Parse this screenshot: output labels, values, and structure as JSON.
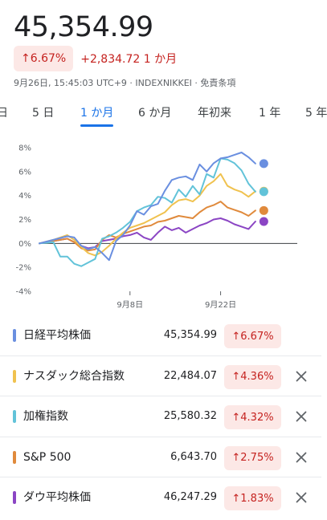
{
  "header": {
    "price": "45,354.99",
    "change_pct": "↑6.67%",
    "change_abs": "+2,834.72 1 か月",
    "meta": "9月26日, 15:45:03 UTC+9 · INDEXNIKKEI · 免責条項"
  },
  "tabs": [
    {
      "label": "日",
      "active": false
    },
    {
      "label": "5 日",
      "active": false
    },
    {
      "label": "1 か月",
      "active": true
    },
    {
      "label": "6 か月",
      "active": false
    },
    {
      "label": "年初来",
      "active": false
    },
    {
      "label": "1 年",
      "active": false
    },
    {
      "label": "5 年",
      "active": false
    }
  ],
  "chart_data": {
    "type": "line",
    "y_tick_labels": [
      "8%",
      "6%",
      "4%",
      "2%",
      "0%",
      "-2%",
      "-4%"
    ],
    "ylim": [
      -4,
      8
    ],
    "x_ticks": [
      {
        "x": 9,
        "label": "9月8日"
      },
      {
        "x": 22,
        "label": "9月22日"
      }
    ],
    "xlim": [
      -4,
      33
    ],
    "series": [
      {
        "name": "日経平均株価",
        "color": "#6a8fe0",
        "points": [
          [
            -4,
            0
          ],
          [
            -2,
            0.3
          ],
          [
            0,
            0.6
          ],
          [
            1,
            0.5
          ],
          [
            2,
            -0.2
          ],
          [
            3,
            -0.5
          ],
          [
            4,
            -0.3
          ],
          [
            5,
            -0.8
          ],
          [
            6,
            -1.4
          ],
          [
            7,
            0.2
          ],
          [
            8,
            0.7
          ],
          [
            9,
            1.5
          ],
          [
            10,
            2.7
          ],
          [
            11,
            2.4
          ],
          [
            12,
            3.1
          ],
          [
            13,
            3.3
          ],
          [
            14,
            4.4
          ],
          [
            15,
            5.3
          ],
          [
            16,
            5.5
          ],
          [
            17,
            5.6
          ],
          [
            18,
            5.3
          ],
          [
            19,
            6.6
          ],
          [
            20,
            6.0
          ],
          [
            21,
            6.7
          ],
          [
            22,
            7.1
          ],
          [
            23,
            7.2
          ],
          [
            24,
            7.4
          ],
          [
            25,
            7.6
          ],
          [
            26,
            7.2
          ],
          [
            27,
            6.67
          ]
        ]
      },
      {
        "name": "ナスダック総合指数",
        "color": "#f0c24f",
        "points": [
          [
            -4,
            0
          ],
          [
            -2,
            0.3
          ],
          [
            0,
            0.7
          ],
          [
            1,
            0.3
          ],
          [
            2,
            -0.3
          ],
          [
            3,
            -0.8
          ],
          [
            4,
            -1.0
          ],
          [
            5,
            -0.7
          ],
          [
            6,
            -0.2
          ],
          [
            7,
            0.4
          ],
          [
            8,
            0.9
          ],
          [
            9,
            1.3
          ],
          [
            10,
            1.5
          ],
          [
            11,
            1.7
          ],
          [
            12,
            2.0
          ],
          [
            13,
            2.3
          ],
          [
            14,
            2.6
          ],
          [
            15,
            3.2
          ],
          [
            16,
            3.6
          ],
          [
            17,
            3.7
          ],
          [
            18,
            3.5
          ],
          [
            19,
            4.0
          ],
          [
            20,
            4.8
          ],
          [
            21,
            5.2
          ],
          [
            22,
            5.8
          ],
          [
            23,
            4.8
          ],
          [
            24,
            4.5
          ],
          [
            25,
            4.3
          ],
          [
            26,
            3.9
          ],
          [
            27,
            4.36
          ]
        ]
      },
      {
        "name": "加権指数",
        "color": "#62c3d9",
        "points": [
          [
            -4,
            0
          ],
          [
            -2,
            0.1
          ],
          [
            -1,
            -1.1
          ],
          [
            0,
            -1.1
          ],
          [
            1,
            -1.7
          ],
          [
            2,
            -1.9
          ],
          [
            3,
            -1.6
          ],
          [
            4,
            -1.3
          ],
          [
            5,
            0.4
          ],
          [
            6,
            0.6
          ],
          [
            7,
            0.9
          ],
          [
            8,
            1.3
          ],
          [
            9,
            1.8
          ],
          [
            10,
            2.7
          ],
          [
            11,
            3.0
          ],
          [
            12,
            3.2
          ],
          [
            13,
            3.9
          ],
          [
            14,
            3.8
          ],
          [
            15,
            3.4
          ],
          [
            16,
            4.5
          ],
          [
            17,
            3.9
          ],
          [
            18,
            4.8
          ],
          [
            19,
            4.1
          ],
          [
            20,
            5.8
          ],
          [
            21,
            5.5
          ],
          [
            22,
            7.1
          ],
          [
            23,
            7.0
          ],
          [
            24,
            6.7
          ],
          [
            25,
            6.1
          ],
          [
            26,
            5.0
          ],
          [
            27,
            4.32
          ]
        ]
      },
      {
        "name": "S&P 500",
        "color": "#e08a3c",
        "points": [
          [
            -4,
            0
          ],
          [
            -2,
            0.2
          ],
          [
            0,
            0.4
          ],
          [
            1,
            0.1
          ],
          [
            2,
            -0.4
          ],
          [
            3,
            -0.6
          ],
          [
            4,
            -0.5
          ],
          [
            5,
            0.3
          ],
          [
            6,
            0.7
          ],
          [
            7,
            0.5
          ],
          [
            8,
            0.8
          ],
          [
            9,
            1.0
          ],
          [
            10,
            1.2
          ],
          [
            11,
            1.4
          ],
          [
            12,
            1.5
          ],
          [
            13,
            1.8
          ],
          [
            14,
            1.9
          ],
          [
            15,
            2.1
          ],
          [
            16,
            2.3
          ],
          [
            17,
            2.2
          ],
          [
            18,
            2.1
          ],
          [
            19,
            2.6
          ],
          [
            20,
            3.0
          ],
          [
            21,
            3.2
          ],
          [
            22,
            3.5
          ],
          [
            23,
            3.0
          ],
          [
            24,
            2.8
          ],
          [
            25,
            2.6
          ],
          [
            26,
            2.3
          ],
          [
            27,
            2.75
          ]
        ]
      },
      {
        "name": "ダウ平均株価",
        "color": "#8b45c4",
        "points": [
          [
            -4,
            0
          ],
          [
            -2,
            0.2
          ],
          [
            0,
            0.4
          ],
          [
            1,
            0.1
          ],
          [
            2,
            -0.2
          ],
          [
            3,
            -0.4
          ],
          [
            4,
            -0.3
          ],
          [
            5,
            0.2
          ],
          [
            6,
            0.3
          ],
          [
            7,
            0.4
          ],
          [
            8,
            0.6
          ],
          [
            9,
            0.7
          ],
          [
            10,
            0.9
          ],
          [
            11,
            0.5
          ],
          [
            12,
            0.3
          ],
          [
            13,
            0.9
          ],
          [
            14,
            1.4
          ],
          [
            15,
            1.1
          ],
          [
            16,
            1.3
          ],
          [
            17,
            0.9
          ],
          [
            18,
            1.2
          ],
          [
            19,
            1.5
          ],
          [
            20,
            1.7
          ],
          [
            21,
            2.0
          ],
          [
            22,
            2.1
          ],
          [
            23,
            1.9
          ],
          [
            24,
            1.6
          ],
          [
            25,
            1.4
          ],
          [
            26,
            1.2
          ],
          [
            27,
            1.83
          ]
        ]
      }
    ]
  },
  "indices": [
    {
      "name": "日経平均株価",
      "value": "45,354.99",
      "change": "↑6.67%",
      "color": "#6a8fe0",
      "removable": false
    },
    {
      "name": "ナスダック総合指数",
      "value": "22,484.07",
      "change": "↑4.36%",
      "color": "#f0c24f",
      "removable": true
    },
    {
      "name": "加権指数",
      "value": "25,580.32",
      "change": "↑4.32%",
      "color": "#62c3d9",
      "removable": true
    },
    {
      "name": "S&P 500",
      "value": "6,643.70",
      "change": "↑2.75%",
      "color": "#e08a3c",
      "removable": true
    },
    {
      "name": "ダウ平均株価",
      "value": "46,247.29",
      "change": "↑1.83%",
      "color": "#8b45c4",
      "removable": true
    }
  ]
}
